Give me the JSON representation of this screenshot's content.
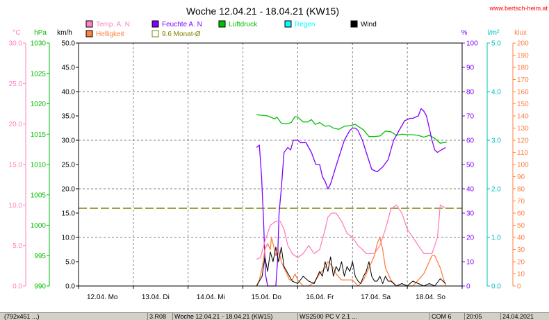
{
  "chart_data": {
    "type": "line",
    "title": "Woche 12.04.21 - 18.04.21 (KW15)",
    "watermark": "www.bertsch-heim.at",
    "x_labels": [
      "12.04. Mo",
      "13.04. Di",
      "14.04. Mi",
      "15.04. Do",
      "16.04. Fr",
      "17.04. Sa",
      "18.04. So"
    ],
    "x_range_days": [
      0,
      7
    ],
    "grid": true,
    "axes": {
      "celsius": {
        "label": "°C",
        "range": [
          0,
          30
        ],
        "ticks": [
          "0.0",
          "5.0",
          "10.0",
          "15.0",
          "20.0",
          "25.0",
          "30.0"
        ],
        "color": "#ff80c0"
      },
      "hpa": {
        "label": "hPa",
        "range": [
          990,
          1030
        ],
        "ticks": [
          "990",
          "995",
          "1000",
          "1005",
          "1010",
          "1015",
          "1020",
          "1025",
          "1030"
        ],
        "color": "#00c000"
      },
      "kmh": {
        "label": "km/h",
        "range": [
          0,
          50
        ],
        "ticks": [
          "0.0",
          "5.0",
          "10.0",
          "15.0",
          "20.0",
          "25.0",
          "30.0",
          "35.0",
          "40.0",
          "45.0",
          "50.0"
        ],
        "color": "#000000"
      },
      "percent": {
        "label": "%",
        "range": [
          0,
          100
        ],
        "ticks": [
          "0",
          "10",
          "20",
          "30",
          "40",
          "50",
          "60",
          "70",
          "80",
          "90",
          "100"
        ],
        "color": "#8000ff"
      },
      "lm2": {
        "label": "l/m²",
        "range": [
          0,
          5
        ],
        "ticks": [
          "0.0",
          "1.0",
          "2.0",
          "3.0",
          "4.0",
          "5.0"
        ],
        "color": "#00c0c0"
      },
      "klux": {
        "label": "klux",
        "range": [
          0,
          200
        ],
        "ticks": [
          "0",
          "10",
          "20",
          "30",
          "40",
          "50",
          "60",
          "70",
          "80",
          "90",
          "100",
          "110",
          "120",
          "130",
          "140",
          "150",
          "160",
          "170",
          "180",
          "190",
          "200"
        ],
        "color": "#ff8040"
      }
    },
    "legend": [
      {
        "label": "Temp. A. N",
        "color": "#ff80c0",
        "style": "box"
      },
      {
        "label": "Feuchte A. N",
        "color": "#8000ff",
        "style": "box"
      },
      {
        "label": "Luftdruck",
        "color": "#00c000",
        "style": "box"
      },
      {
        "label": "Regen",
        "color": "#00ffff",
        "style": "box"
      },
      {
        "label": "Wind",
        "color": "#000000",
        "style": "box"
      },
      {
        "label": "Helligkeit",
        "color": "#ff8040",
        "style": "box"
      },
      {
        "label": "9.6 Monat-Ø",
        "color": "#808000",
        "style": "outline"
      }
    ],
    "reference_line": {
      "name": "9.6 Monat-Ø",
      "axis": "celsius",
      "value": 9.6,
      "color": "#808000"
    },
    "series": [
      {
        "name": "Luftdruck",
        "axis": "hpa",
        "color": "#00c000",
        "x": [
          3.25,
          3.45,
          3.58,
          3.62,
          3.7,
          3.8,
          3.88,
          3.95,
          4.0,
          4.1,
          4.18,
          4.25,
          4.32,
          4.4,
          4.5,
          4.58,
          4.65,
          4.75,
          4.85,
          4.95,
          5.05,
          5.1,
          5.2,
          5.3,
          5.4,
          5.5,
          5.6,
          5.7,
          5.8,
          5.9,
          6.0,
          6.1,
          6.2,
          6.3,
          6.4,
          6.5,
          6.6,
          6.65,
          6.72
        ],
        "y": [
          1018.2,
          1018.0,
          1017.5,
          1017.8,
          1016.8,
          1016.7,
          1016.9,
          1017.9,
          1017.8,
          1017.0,
          1017.0,
          1017.4,
          1016.6,
          1016.9,
          1016.3,
          1016.4,
          1016.0,
          1015.8,
          1016.3,
          1016.4,
          1016.6,
          1016.3,
          1015.7,
          1014.6,
          1014.6,
          1014.7,
          1015.5,
          1015.4,
          1014.8,
          1015.0,
          1014.9,
          1014.9,
          1014.8,
          1014.5,
          1014.8,
          1014.3,
          1013.5,
          1013.6,
          1013.7
        ]
      },
      {
        "name": "Feuchte A. N",
        "axis": "percent",
        "color": "#8000ff",
        "x": [
          3.25,
          3.3,
          3.34,
          3.38,
          3.41,
          3.45,
          3.5,
          3.55,
          3.6,
          3.63,
          3.66,
          3.7,
          3.75,
          3.82,
          3.87,
          3.92,
          4.0,
          4.05,
          4.1,
          4.15,
          4.25,
          4.33,
          4.4,
          4.45,
          4.5,
          4.55,
          4.6,
          4.68,
          4.75,
          4.85,
          4.95,
          5.0,
          5.05,
          5.1,
          5.18,
          5.25,
          5.35,
          5.45,
          5.5,
          5.55,
          5.65,
          5.75,
          5.85,
          5.95,
          6.05,
          6.1,
          6.2,
          6.25,
          6.3,
          6.35,
          6.4,
          6.45,
          6.5,
          6.55,
          6.62,
          6.7
        ],
        "y": [
          57,
          58,
          45,
          25,
          5,
          0,
          0,
          0,
          0,
          10,
          30,
          40,
          55,
          57,
          56,
          60,
          60,
          59,
          59,
          59,
          55,
          50,
          50,
          45,
          43,
          40,
          42,
          48,
          53,
          60,
          64,
          65,
          65,
          64,
          60,
          55,
          48,
          47,
          48,
          49,
          52,
          60,
          64,
          68,
          69,
          69,
          70,
          73,
          72,
          70,
          65,
          60,
          56,
          55,
          56,
          57
        ]
      },
      {
        "name": "Temp. A. N",
        "axis": "celsius",
        "color": "#ff80c0",
        "x": [
          3.25,
          3.32,
          3.4,
          3.5,
          3.6,
          3.68,
          3.75,
          3.82,
          3.9,
          4.0,
          4.1,
          4.2,
          4.3,
          4.4,
          4.5,
          4.55,
          4.62,
          4.7,
          4.8,
          4.9,
          5.0,
          5.1,
          5.18,
          5.25,
          5.32,
          5.4,
          5.5,
          5.6,
          5.7,
          5.8,
          5.9,
          6.0,
          6.1,
          6.2,
          6.3,
          6.4,
          6.45,
          6.5,
          6.55,
          6.6,
          6.7
        ],
        "y": [
          3.3,
          3.5,
          5.5,
          7.5,
          8,
          8,
          7,
          5,
          4,
          3.5,
          4,
          5,
          4,
          4.5,
          7,
          8.5,
          9,
          9,
          8,
          6.5,
          6,
          5,
          4.5,
          4,
          4,
          4,
          5,
          7,
          9.5,
          10,
          9,
          7,
          6,
          5,
          4,
          4,
          4,
          5,
          6,
          10,
          9.6
        ]
      },
      {
        "name": "Helligkeit",
        "axis": "klux",
        "color": "#ff8040",
        "x": [
          3.25,
          3.3,
          3.35,
          3.4,
          3.45,
          3.5,
          3.52,
          3.55,
          3.6,
          3.65,
          3.7,
          3.75,
          3.8,
          3.85,
          3.9,
          3.95,
          4.0,
          4.1,
          4.2,
          4.3,
          4.4,
          4.5,
          4.55,
          4.6,
          4.65,
          4.7,
          4.8,
          4.9,
          5.0,
          5.1,
          5.2,
          5.3,
          5.4,
          5.45,
          5.5,
          5.55,
          5.6,
          5.7,
          5.8,
          5.9,
          6.0,
          6.1,
          6.2,
          6.3,
          6.4,
          6.45,
          6.5,
          6.55,
          6.6,
          6.7
        ],
        "y": [
          0,
          5,
          15,
          30,
          35,
          30,
          40,
          35,
          25,
          30,
          20,
          15,
          10,
          5,
          5,
          10,
          5,
          0,
          0,
          3,
          10,
          15,
          20,
          18,
          15,
          10,
          5,
          5,
          5,
          0,
          5,
          15,
          25,
          35,
          40,
          30,
          15,
          5,
          0,
          0,
          0,
          0,
          5,
          10,
          20,
          25,
          25,
          20,
          15,
          0
        ]
      },
      {
        "name": "Wind",
        "axis": "kmh",
        "color": "#000000",
        "x": [
          3.25,
          3.3,
          3.35,
          3.4,
          3.45,
          3.5,
          3.55,
          3.6,
          3.65,
          3.7,
          3.75,
          3.8,
          3.85,
          3.9,
          4.0,
          4.1,
          4.2,
          4.3,
          4.4,
          4.45,
          4.5,
          4.55,
          4.6,
          4.65,
          4.7,
          4.75,
          4.8,
          4.85,
          4.9,
          4.95,
          5.0,
          5.05,
          5.1,
          5.15,
          5.2,
          5.25,
          5.3,
          5.35,
          5.4,
          5.45,
          5.5,
          5.55,
          5.6,
          5.65,
          5.7,
          5.8,
          5.9,
          6.0,
          6.1,
          6.2,
          6.3,
          6.4,
          6.5,
          6.6,
          6.7
        ],
        "y": [
          0,
          1,
          2,
          6,
          3,
          7,
          5,
          8,
          5,
          8,
          4,
          3,
          2,
          1,
          0.5,
          2,
          1,
          0.5,
          3,
          2,
          5,
          3,
          6,
          2,
          4,
          3,
          5,
          2,
          4,
          3,
          5,
          2,
          1,
          0.5,
          2,
          3,
          5,
          2,
          1,
          1,
          2,
          0.5,
          2,
          1,
          1,
          0,
          0.5,
          0,
          1,
          0.5,
          0,
          0.5,
          0,
          1.5,
          0.5
        ]
      }
    ]
  },
  "statusbar": {
    "dims": "(792x451 ...)",
    "code": "3.R08",
    "week": "Woche 12.04.21 - 18.04.21 (KW15)",
    "station": "WS2500 PC V 2.1 ...",
    "port": "COM 6",
    "time": "20:05",
    "date": "24.04.2021"
  }
}
